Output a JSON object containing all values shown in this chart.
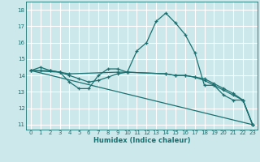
{
  "xlabel": "Humidex (Indice chaleur)",
  "bg_color": "#cce8eb",
  "grid_color": "#ffffff",
  "line_color": "#1a7070",
  "ylim": [
    10.7,
    18.5
  ],
  "xlim": [
    -0.5,
    23.5
  ],
  "yticks": [
    11,
    12,
    13,
    14,
    15,
    16,
    17,
    18
  ],
  "xticks": [
    0,
    1,
    2,
    3,
    4,
    5,
    6,
    7,
    8,
    9,
    10,
    11,
    12,
    13,
    14,
    15,
    16,
    17,
    18,
    19,
    20,
    21,
    22,
    23
  ],
  "lines": [
    {
      "x": [
        0,
        1,
        2,
        3,
        4,
        5,
        6,
        7,
        8,
        9,
        10,
        11,
        12,
        13,
        14,
        15,
        16,
        17,
        18,
        19,
        20,
        21,
        22,
        23
      ],
      "y": [
        14.3,
        14.5,
        14.3,
        14.2,
        13.6,
        13.2,
        13.2,
        14.0,
        14.4,
        14.4,
        14.2,
        15.5,
        16.0,
        17.3,
        17.8,
        17.2,
        16.5,
        15.4,
        13.4,
        13.4,
        12.8,
        12.5,
        12.5,
        11.0
      ],
      "marker": true
    },
    {
      "x": [
        0,
        1,
        2,
        3,
        4,
        9,
        10,
        14,
        15,
        16,
        17,
        18,
        19,
        20,
        21,
        22,
        23
      ],
      "y": [
        14.3,
        14.3,
        14.3,
        14.2,
        14.1,
        14.2,
        14.2,
        14.1,
        14.0,
        14.0,
        13.9,
        13.8,
        13.5,
        13.2,
        12.9,
        12.5,
        11.0
      ],
      "marker": true
    },
    {
      "x": [
        0,
        3,
        4,
        5,
        6,
        7,
        8,
        9,
        10,
        14,
        15,
        16,
        17,
        18,
        19,
        20,
        21,
        22,
        23
      ],
      "y": [
        14.3,
        14.2,
        14.0,
        13.8,
        13.6,
        13.7,
        13.9,
        14.1,
        14.2,
        14.1,
        14.0,
        14.0,
        13.9,
        13.7,
        13.4,
        13.1,
        12.8,
        12.5,
        11.0
      ],
      "marker": true
    },
    {
      "x": [
        0,
        23
      ],
      "y": [
        14.3,
        11.0
      ],
      "marker": false
    }
  ]
}
